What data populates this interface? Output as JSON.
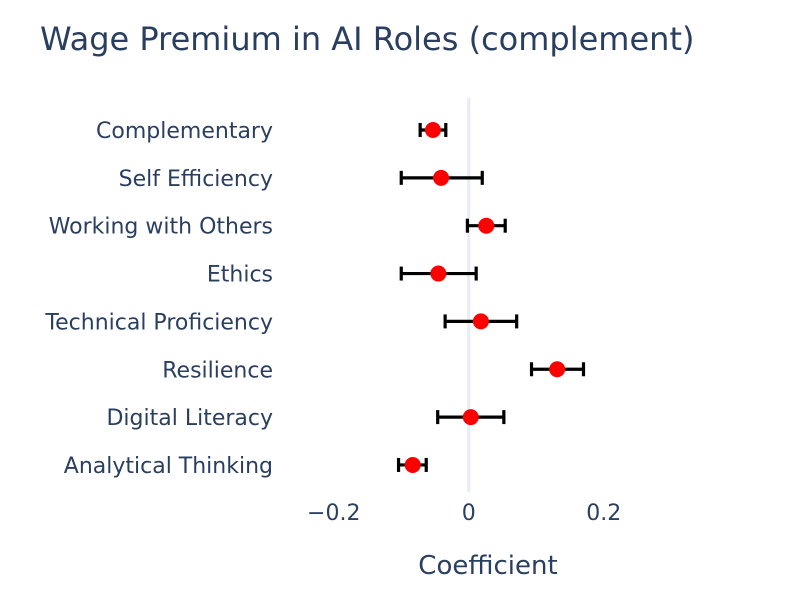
{
  "chart_data": {
    "type": "scatter",
    "title": "Wage Premium in AI Roles (complement)",
    "xlabel": "Coefficient",
    "ylabel": "",
    "xlim": [
      -0.25,
      0.35
    ],
    "xticks": [
      -0.2,
      0,
      0.2
    ],
    "xtick_labels": [
      "−0.2",
      "0",
      "0.2"
    ],
    "grid": false,
    "zero_line": true,
    "categories": [
      "Complementary",
      "Self Efficiency",
      "Working with Others",
      "Ethics",
      "Technical Proficiency",
      "Resilience",
      "Digital Literacy",
      "Analytical Thinking"
    ],
    "estimates": [
      -0.053,
      -0.041,
      0.026,
      -0.045,
      0.018,
      0.131,
      0.003,
      -0.083
    ],
    "ci_lower": [
      -0.072,
      -0.1,
      -0.002,
      -0.1,
      -0.035,
      0.093,
      -0.046,
      -0.104
    ],
    "ci_upper": [
      -0.034,
      0.02,
      0.054,
      0.011,
      0.071,
      0.17,
      0.052,
      -0.063
    ],
    "colors": {
      "point": "#ff0000",
      "errorbar": "#000000",
      "zeroline": "#e5ecf6",
      "text": "#2a3f5f"
    }
  }
}
